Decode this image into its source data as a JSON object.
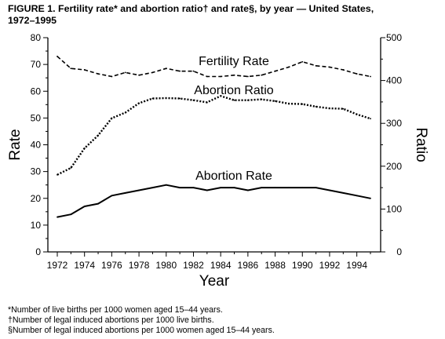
{
  "title": {
    "line1": "FIGURE 1. Fertility rate* and abortion ratio† and rate§, by year — United States,",
    "line2": "1972–1995"
  },
  "footnotes": [
    "*Number of live births per 1000 women aged 15–44 years.",
    "†Number of legal induced abortions per 1000 live births.",
    "§Number of legal induced abortions per 1000 women aged 15–44 years."
  ],
  "chart_data": {
    "type": "line",
    "xlabel": "Year",
    "ylabel": "Rate",
    "y2label": "Ratio",
    "ylim": [
      0,
      80
    ],
    "y2lim": [
      0,
      500
    ],
    "yticks": [
      0,
      10,
      20,
      30,
      40,
      50,
      60,
      70,
      80
    ],
    "y2ticks": [
      0,
      100,
      200,
      300,
      400,
      500
    ],
    "xlim": [
      1972,
      1995
    ],
    "xtick_labels": [
      "1972",
      "1974",
      "1976",
      "1978",
      "1980",
      "1982",
      "1984",
      "1986",
      "1988",
      "1990",
      "1992",
      "1994"
    ],
    "grid": false,
    "legend": "none",
    "series": [
      {
        "name": "Fertility Rate",
        "axis": "left",
        "style": "dashed",
        "x": [
          1972,
          1973,
          1974,
          1975,
          1976,
          1977,
          1978,
          1979,
          1980,
          1981,
          1982,
          1983,
          1984,
          1985,
          1986,
          1987,
          1988,
          1989,
          1990,
          1991,
          1992,
          1993,
          1994,
          1995
        ],
        "values": [
          73,
          68.5,
          68,
          66.5,
          65.5,
          67,
          66,
          67,
          68.5,
          67.5,
          67.5,
          65.5,
          65.5,
          66,
          65.5,
          66,
          67.5,
          69,
          71,
          69.5,
          69,
          68,
          66.5,
          65.5
        ]
      },
      {
        "name": "Abortion Ratio",
        "axis": "right",
        "style": "dotted",
        "x": [
          1972,
          1973,
          1974,
          1975,
          1976,
          1977,
          1978,
          1979,
          1980,
          1981,
          1982,
          1983,
          1984,
          1985,
          1986,
          1987,
          1988,
          1989,
          1990,
          1991,
          1992,
          1993,
          1994,
          1995
        ],
        "values": [
          180,
          196,
          242,
          272,
          312,
          325,
          347,
          358,
          359,
          358,
          354,
          349,
          364,
          354,
          354,
          356,
          352,
          346,
          345,
          339,
          335,
          334,
          321,
          311
        ]
      },
      {
        "name": "Abortion Rate",
        "axis": "left",
        "style": "solid",
        "x": [
          1972,
          1973,
          1974,
          1975,
          1976,
          1977,
          1978,
          1979,
          1980,
          1981,
          1982,
          1983,
          1984,
          1985,
          1986,
          1987,
          1988,
          1989,
          1990,
          1991,
          1992,
          1993,
          1994,
          1995
        ],
        "values": [
          13,
          14,
          17,
          18,
          21,
          22,
          23,
          24,
          25,
          24,
          24,
          23,
          24,
          24,
          23,
          24,
          24,
          24,
          24,
          24,
          23,
          22,
          21,
          20
        ]
      }
    ]
  }
}
